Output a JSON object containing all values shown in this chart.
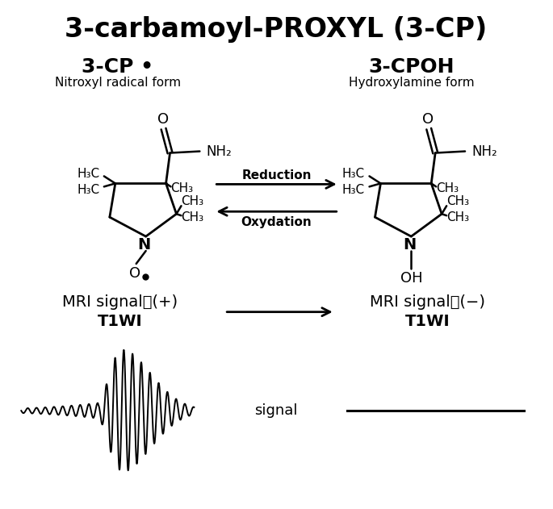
{
  "title": "3-carbamoyl-PROXYL (3-CP)",
  "title_fontsize": 24,
  "bg_color": "#ffffff",
  "label_3cp": "3-CP •",
  "label_3cpoh": "3-CPOH",
  "sublabel_3cp": "Nitroxyl radical form",
  "sublabel_3cpoh": "Hydroxylamine form",
  "arrow_reduction": "Reduction",
  "arrow_oxydation": "Oxydation",
  "mri_left_line1": "MRI signal　(+)",
  "mri_right_line1": "MRI signal　(−)",
  "t1wi_left": "T1WI",
  "t1wi_right": "T1WI",
  "signal_label": "signal"
}
